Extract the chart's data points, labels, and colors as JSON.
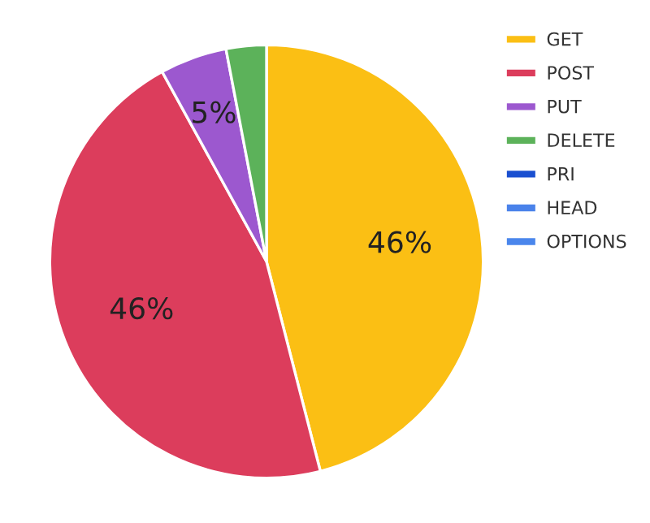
{
  "chart_data": {
    "type": "pie",
    "categories": [
      "GET",
      "POST",
      "PUT",
      "DELETE",
      "PRI",
      "HEAD",
      "OPTIONS"
    ],
    "values": [
      46,
      46,
      5,
      3,
      0,
      0,
      0
    ],
    "value_labels": [
      "46%",
      "46%",
      "5%",
      null,
      null,
      null,
      null
    ],
    "colors": [
      "#fbbf14",
      "#dc3d5c",
      "#9c58cf",
      "#5cb25a",
      "#1a4fd0",
      "#4a82ea",
      "#4a86ec"
    ],
    "legend": "right"
  }
}
